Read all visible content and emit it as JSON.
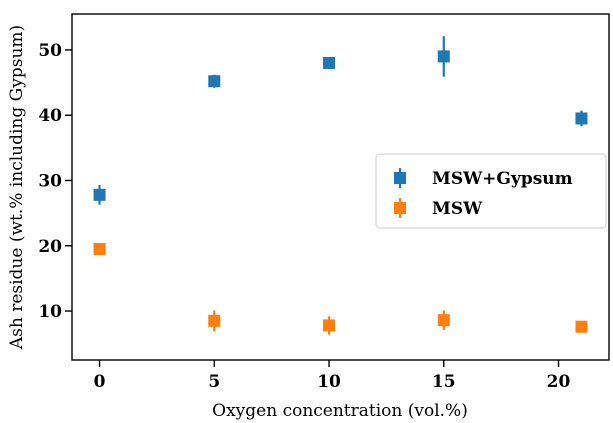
{
  "chart_data": {
    "type": "scatter",
    "xlabel": "Oxygen concentration (vol.%)",
    "ylabel": "Ash residue (wt.% including Gypsum)",
    "xlim": [
      -1.2,
      22.2
    ],
    "ylim": [
      2.5,
      55.5
    ],
    "x_ticks": [
      0,
      5,
      10,
      15,
      20
    ],
    "y_ticks": [
      10,
      20,
      30,
      40,
      50
    ],
    "grid": false,
    "legend_placement": "center-right",
    "series": [
      {
        "name": "MSW+Gypsum",
        "color": "#1f77b4",
        "marker": "square",
        "points": [
          {
            "x": 0,
            "y": 27.8,
            "err": 1.5
          },
          {
            "x": 5,
            "y": 45.2,
            "err": 1.0
          },
          {
            "x": 10,
            "y": 48.0,
            "err": 0.6
          },
          {
            "x": 15,
            "y": 49.0,
            "err": 3.1
          },
          {
            "x": 21,
            "y": 39.5,
            "err": 1.2
          }
        ]
      },
      {
        "name": "MSW",
        "color": "#ff7f0e",
        "marker": "square",
        "points": [
          {
            "x": 0,
            "y": 19.5,
            "err": 0.8
          },
          {
            "x": 5,
            "y": 8.5,
            "err": 1.6
          },
          {
            "x": 10,
            "y": 7.8,
            "err": 1.4
          },
          {
            "x": 15,
            "y": 8.6,
            "err": 1.5
          },
          {
            "x": 21,
            "y": 7.6,
            "err": 0.3
          }
        ]
      }
    ]
  }
}
